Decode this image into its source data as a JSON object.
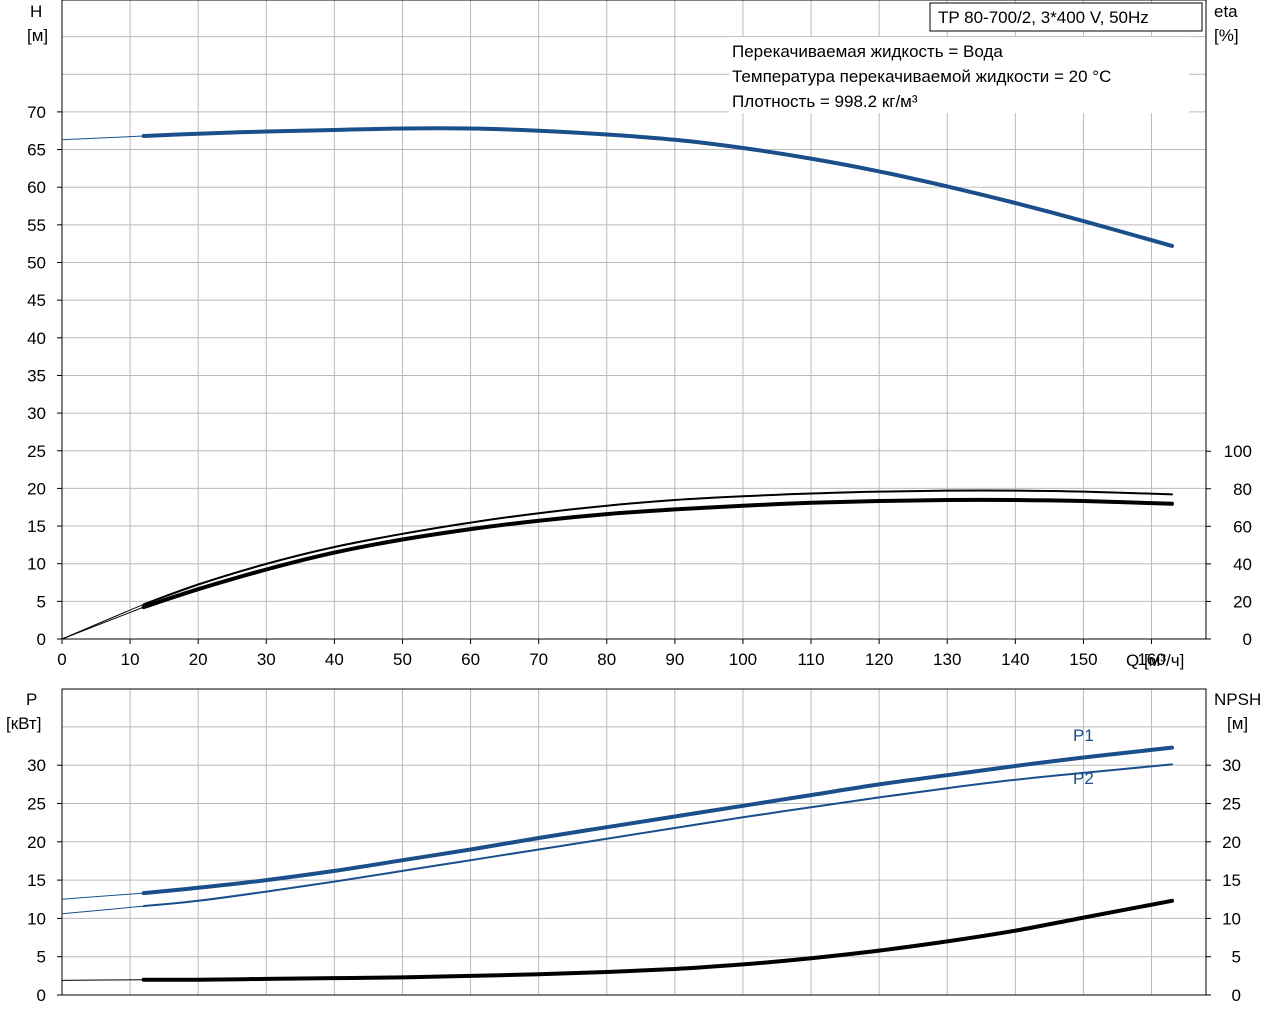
{
  "model_label": "TP 80-700/2, 3*400 V, 50Hz",
  "info_lines": [
    "Перекачиваемая жидкость = Вода",
    "Температура перекачиваемой жидкости = 20 °C",
    "Плотность = 998.2 кг/м³"
  ],
  "colors": {
    "head": "#1a4f8b",
    "power": "#1a4f8b",
    "eta": "#000000",
    "npsh": "#000000",
    "grid": "#bbbbbb"
  },
  "chart_data": [
    {
      "type": "line",
      "title": "",
      "x_label": "Q [м³/ч]",
      "x_ticks": [
        "0",
        "10",
        "20",
        "30",
        "40",
        "50",
        "60",
        "70",
        "80",
        "90",
        "100",
        "110",
        "120",
        "130",
        "140",
        "150",
        "160"
      ],
      "xlim": [
        0,
        168
      ],
      "y_left": {
        "label_top": "H",
        "label_unit": "[м]",
        "ticks": [
          "0",
          "5",
          "10",
          "15",
          "20",
          "25",
          "30",
          "35",
          "40",
          "45",
          "50",
          "55",
          "60",
          "65",
          "70"
        ],
        "range": [
          0,
          70
        ]
      },
      "y_right": {
        "label_top": "eta",
        "label_unit": "[%]",
        "ticks": [
          "0",
          "20",
          "40",
          "60",
          "80",
          "100"
        ],
        "range": [
          0,
          100
        ]
      },
      "grid": true,
      "series": [
        {
          "key": "head",
          "axis": "left",
          "x": [
            0,
            12,
            20,
            30,
            40,
            50,
            60,
            70,
            80,
            90,
            100,
            110,
            120,
            130,
            140,
            150,
            163
          ],
          "y": [
            66.3,
            66.8,
            67.1,
            67.4,
            67.6,
            67.8,
            67.8,
            67.5,
            67.0,
            66.3,
            65.2,
            63.8,
            62.1,
            60.1,
            57.9,
            55.5,
            52.2
          ]
        },
        {
          "key": "eta-thin",
          "axis": "right",
          "x": [
            0,
            12,
            20,
            30,
            40,
            50,
            60,
            70,
            80,
            90,
            100,
            110,
            120,
            130,
            140,
            150,
            163
          ],
          "y": [
            0,
            18.5,
            29,
            40,
            49,
            56,
            62,
            67,
            71,
            74,
            76,
            77.5,
            78.5,
            79,
            79,
            78.5,
            77
          ]
        },
        {
          "key": "eta-thick",
          "axis": "right",
          "x": [
            0,
            12,
            20,
            30,
            40,
            50,
            60,
            70,
            80,
            90,
            100,
            110,
            120,
            130,
            140,
            150,
            163
          ],
          "y": [
            0,
            17,
            26.5,
            37,
            46,
            53,
            58.5,
            63,
            66.5,
            69,
            71,
            72.5,
            73.5,
            74,
            74,
            73.5,
            72
          ]
        }
      ]
    },
    {
      "type": "line",
      "title": "",
      "xlim": [
        0,
        168
      ],
      "y_left": {
        "label_top": "P",
        "label_unit": "[кВт]",
        "ticks": [
          "0",
          "5",
          "10",
          "15",
          "20",
          "25",
          "30"
        ],
        "range": [
          0,
          35
        ]
      },
      "y_right": {
        "label_top": "NPSH",
        "label_unit": "[м]",
        "ticks": [
          "0",
          "5",
          "10",
          "15",
          "20",
          "25",
          "30"
        ],
        "range": [
          0,
          35
        ]
      },
      "grid": true,
      "series": [
        {
          "key": "P1",
          "name": "P1",
          "axis": "left",
          "x": [
            0,
            12,
            20,
            30,
            40,
            50,
            60,
            70,
            80,
            90,
            100,
            110,
            120,
            130,
            140,
            150,
            163
          ],
          "y": [
            12.5,
            13.3,
            14.0,
            15.0,
            16.2,
            17.6,
            19.0,
            20.5,
            21.9,
            23.3,
            24.7,
            26.1,
            27.5,
            28.7,
            29.9,
            31.0,
            32.3
          ]
        },
        {
          "key": "P2",
          "name": "P2",
          "axis": "left",
          "x": [
            0,
            12,
            20,
            30,
            40,
            50,
            60,
            70,
            80,
            90,
            100,
            110,
            120,
            130,
            140,
            150,
            163
          ],
          "y": [
            10.6,
            11.6,
            12.3,
            13.5,
            14.8,
            16.2,
            17.6,
            19.0,
            20.4,
            21.8,
            23.2,
            24.5,
            25.8,
            27.0,
            28.1,
            29.0,
            30.1
          ]
        },
        {
          "key": "npsh",
          "axis": "right",
          "x": [
            0,
            12,
            20,
            30,
            40,
            50,
            60,
            70,
            80,
            90,
            100,
            110,
            120,
            130,
            140,
            150,
            163
          ],
          "y": [
            1.9,
            2.0,
            2.0,
            2.1,
            2.2,
            2.3,
            2.5,
            2.7,
            3.0,
            3.4,
            4.0,
            4.8,
            5.8,
            7.0,
            8.4,
            10.1,
            12.3
          ]
        }
      ]
    }
  ]
}
